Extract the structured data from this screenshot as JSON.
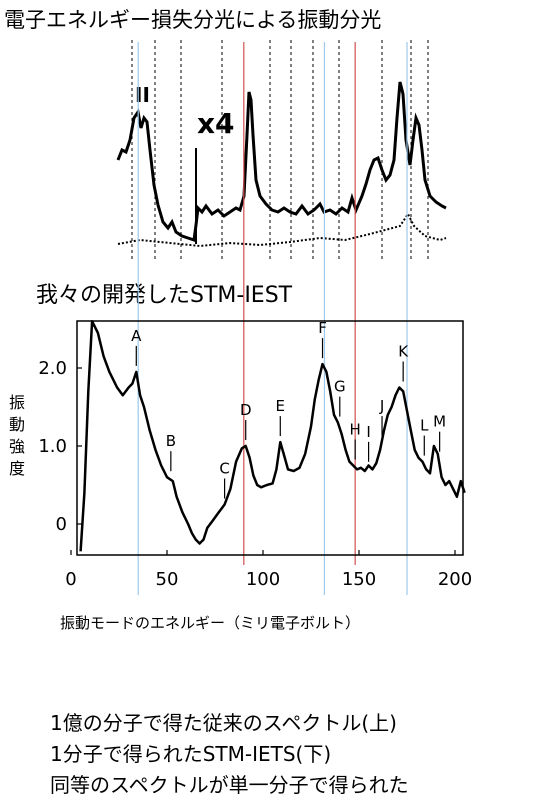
{
  "header": {
    "title": "電子エネルギー損失分光による振動分光",
    "eels_marker": "II",
    "eels_scale": "x4"
  },
  "stm_heading": "我々の開発したSTM-IEST",
  "chart_data": {
    "type": "line",
    "title": "",
    "ylabel_chars": [
      "振",
      "動",
      "強",
      "度"
    ],
    "xlabel": "振動モードのエネルギー（ミリ電子ボルト）",
    "xlim": [
      0,
      205
    ],
    "ylim": [
      -0.35,
      2.6
    ],
    "x_ticks": [
      0,
      50,
      100,
      150,
      200
    ],
    "y_ticks": [
      {
        "value": 0,
        "label": "0"
      },
      {
        "value": 1.0,
        "label": "1.0"
      },
      {
        "value": 2.0,
        "label": "2.0"
      }
    ],
    "series": [
      {
        "x": [
          5,
          7,
          9,
          11,
          14,
          17,
          20,
          24,
          27,
          30,
          32,
          34,
          36,
          38,
          41,
          44,
          47,
          50,
          53,
          55,
          58,
          61,
          63,
          65,
          67,
          69,
          71,
          74,
          77,
          80,
          83,
          86,
          89,
          91,
          93,
          95,
          97,
          99,
          102,
          105,
          107,
          109,
          111,
          113,
          116,
          119,
          122,
          125,
          127,
          129,
          131,
          133,
          135,
          137,
          139,
          141,
          143,
          145,
          147,
          149,
          151,
          153,
          155,
          157,
          159,
          161,
          163,
          165,
          167,
          169,
          171,
          173,
          175,
          177,
          179,
          181,
          183,
          185,
          187,
          189,
          191,
          193,
          195,
          197,
          199,
          201,
          203,
          205
        ],
        "y": [
          -0.35,
          0.4,
          1.7,
          2.6,
          2.45,
          2.15,
          1.95,
          1.75,
          1.65,
          1.75,
          1.8,
          1.95,
          1.65,
          1.5,
          1.2,
          0.95,
          0.75,
          0.6,
          0.55,
          0.35,
          0.15,
          0.0,
          -0.12,
          -0.2,
          -0.25,
          -0.2,
          -0.05,
          0.05,
          0.15,
          0.25,
          0.45,
          0.8,
          0.97,
          1.0,
          0.85,
          0.62,
          0.5,
          0.47,
          0.5,
          0.52,
          0.7,
          1.05,
          0.88,
          0.7,
          0.68,
          0.72,
          0.9,
          1.25,
          1.6,
          1.85,
          2.05,
          1.95,
          1.7,
          1.4,
          1.3,
          1.15,
          0.95,
          0.8,
          0.75,
          0.7,
          0.72,
          0.68,
          0.75,
          0.7,
          0.78,
          0.95,
          1.2,
          1.4,
          1.5,
          1.65,
          1.75,
          1.7,
          1.45,
          1.2,
          0.95,
          0.85,
          0.8,
          0.7,
          0.65,
          1.0,
          0.9,
          0.6,
          0.5,
          0.55,
          0.45,
          0.35,
          0.55,
          0.4
        ]
      }
    ],
    "peak_labels": [
      {
        "label": "A",
        "x": 34,
        "y": 1.95
      },
      {
        "label": "B",
        "x": 52,
        "y": 0.6
      },
      {
        "label": "C",
        "x": 80,
        "y": 0.25
      },
      {
        "label": "D",
        "x": 91,
        "y": 1.0
      },
      {
        "label": "E",
        "x": 109,
        "y": 1.05
      },
      {
        "label": "F",
        "x": 131,
        "y": 2.05
      },
      {
        "label": "G",
        "x": 140,
        "y": 1.3
      },
      {
        "label": "H",
        "x": 148,
        "y": 0.75
      },
      {
        "label": "I",
        "x": 155,
        "y": 0.72
      },
      {
        "label": "J",
        "x": 162,
        "y": 1.05
      },
      {
        "label": "K",
        "x": 173,
        "y": 1.75
      },
      {
        "label": "L",
        "x": 184,
        "y": 0.8
      },
      {
        "label": "M",
        "x": 192,
        "y": 0.85
      }
    ],
    "blue_lines_x": [
      35,
      132,
      175
    ],
    "red_lines_x": [
      90,
      148
    ],
    "colors": {
      "blue": "#9ec9ea",
      "red": "#d05050",
      "curve": "#000000"
    }
  },
  "caption": {
    "line1": "1億の分子で得た従来のスペクトル(上)",
    "line2": "1分子で得られたSTM-IETS(下)",
    "line3": "同等のスペクトルが単一分子で得られた"
  }
}
